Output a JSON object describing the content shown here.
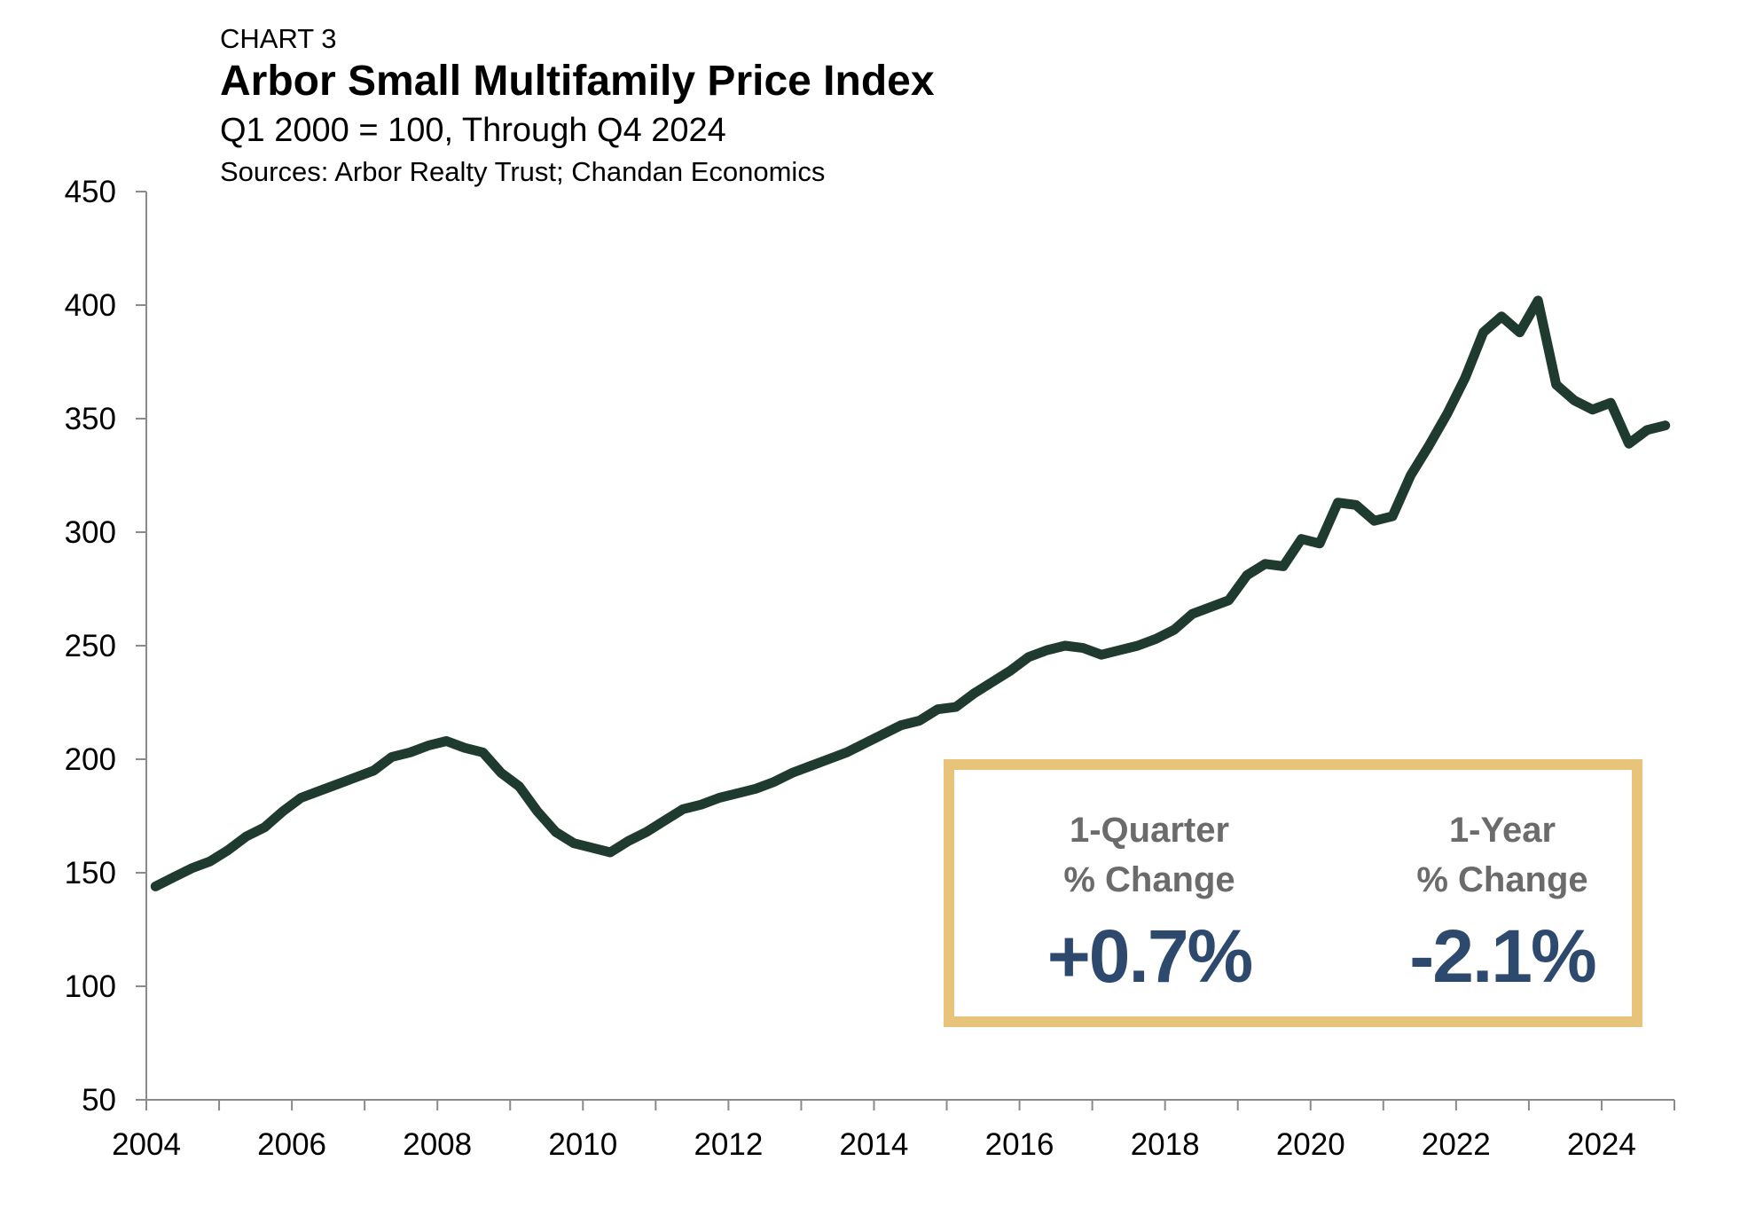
{
  "header": {
    "eyebrow": "CHART 3",
    "title": "Arbor Small Multifamily Price Index",
    "subtitle": "Q1 2000 = 100, Through Q4 2024",
    "source": "Sources: Arbor Realty Trust; Chandan Economics"
  },
  "callout": {
    "quarter_label_1": "1-Quarter",
    "quarter_label_2": "% Change",
    "quarter_value": "+0.7%",
    "year_label_1": "1-Year",
    "year_label_2": "% Change",
    "year_value": "-2.1%"
  },
  "colors": {
    "line": "#1f3a2e",
    "axis": "#8a8a8a",
    "callout_border": "#e8c37a",
    "callout_value": "#2d4a6e",
    "callout_label": "#6b6b6b"
  },
  "chart_data": {
    "type": "line",
    "xlim": [
      2004,
      2025
    ],
    "ylim": [
      50,
      450
    ],
    "x_ticks": [
      2004,
      2006,
      2008,
      2010,
      2012,
      2014,
      2016,
      2018,
      2020,
      2022,
      2024
    ],
    "y_ticks": [
      50,
      100,
      150,
      200,
      250,
      300,
      350,
      400,
      450
    ],
    "grid": false,
    "series": [
      {
        "x": [
          2004.125,
          2004.375,
          2004.625,
          2004.875,
          2005.125,
          2005.375,
          2005.625,
          2005.875,
          2006.125,
          2006.375,
          2006.625,
          2006.875,
          2007.125,
          2007.375,
          2007.625,
          2007.875,
          2008.125,
          2008.375,
          2008.625,
          2008.875,
          2009.125,
          2009.375,
          2009.625,
          2009.875,
          2010.125,
          2010.375,
          2010.625,
          2010.875,
          2011.125,
          2011.375,
          2011.625,
          2011.875,
          2012.125,
          2012.375,
          2012.625,
          2012.875,
          2013.125,
          2013.375,
          2013.625,
          2013.875,
          2014.125,
          2014.375,
          2014.625,
          2014.875,
          2015.125,
          2015.375,
          2015.625,
          2015.875,
          2016.125,
          2016.375,
          2016.625,
          2016.875,
          2017.125,
          2017.375,
          2017.625,
          2017.875,
          2018.125,
          2018.375,
          2018.625,
          2018.875,
          2019.125,
          2019.375,
          2019.625,
          2019.875,
          2020.125,
          2020.375,
          2020.625,
          2020.875,
          2021.125,
          2021.375,
          2021.625,
          2021.875,
          2022.125,
          2022.375,
          2022.625,
          2022.875,
          2023.125,
          2023.375,
          2023.625,
          2023.875,
          2024.125,
          2024.375,
          2024.625,
          2024.875
        ],
        "values": [
          144,
          148,
          152,
          155,
          160,
          166,
          170,
          177,
          183,
          186,
          189,
          192,
          195,
          201,
          203,
          206,
          208,
          205,
          203,
          194,
          188,
          177,
          168,
          163,
          161,
          159,
          164,
          168,
          173,
          178,
          180,
          183,
          185,
          187,
          190,
          194,
          197,
          200,
          203,
          207,
          211,
          215,
          217,
          222,
          223,
          229,
          234,
          239,
          245,
          248,
          250,
          249,
          246,
          248,
          250,
          253,
          257,
          264,
          267,
          270,
          281,
          286,
          285,
          297,
          295,
          313,
          312,
          305,
          307,
          325,
          338,
          352,
          368,
          388,
          395,
          388,
          402,
          365,
          358,
          354,
          357,
          339,
          345,
          347
        ]
      }
    ]
  }
}
